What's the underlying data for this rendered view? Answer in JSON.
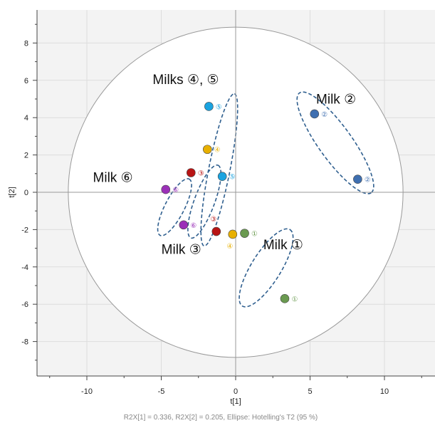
{
  "chart_data": {
    "type": "scatter",
    "title": "",
    "xlabel": "t[1]",
    "ylabel": "t[2]",
    "xlim": [
      -13,
      13
    ],
    "ylim": [
      -10,
      10
    ],
    "xticks": [
      -10,
      -5,
      0,
      5,
      10
    ],
    "yticks": [
      -8,
      -6,
      -4,
      -2,
      0,
      2,
      4,
      6,
      8
    ],
    "xtick_labels": [
      "-10",
      "-5",
      "0",
      "5",
      "10"
    ],
    "ytick_labels": [
      "-8",
      "-6",
      "-4",
      "-2",
      "0",
      "2",
      "4",
      "6",
      "8"
    ],
    "grid": true,
    "plot_background": "#f3f3f3",
    "footer": "R2X[1] = 0.336, R2X[2] = 0.205, Ellipse: Hotelling's T2 (95 %)",
    "hotelling_ellipse": {
      "center": [
        0,
        0
      ],
      "rx": 11.25,
      "ry": 8.85,
      "color": "#999999"
    },
    "points": [
      {
        "x": 3.3,
        "y": -5.7,
        "label": "①",
        "color": "#6a9a50"
      },
      {
        "x": 0.6,
        "y": -2.2,
        "label": "①",
        "color": "#6a9a50"
      },
      {
        "x": 5.3,
        "y": 4.2,
        "label": "②",
        "color": "#3f6fb0"
      },
      {
        "x": 8.2,
        "y": 0.7,
        "label": "②",
        "color": "#3f6fb0"
      },
      {
        "x": -3.0,
        "y": 1.05,
        "label": "③",
        "color": "#b81414"
      },
      {
        "x": -1.3,
        "y": -2.1,
        "label": "③",
        "color": "#b81414"
      },
      {
        "x": -1.9,
        "y": 2.3,
        "label": "④",
        "color": "#e8b000"
      },
      {
        "x": -0.2,
        "y": -2.25,
        "label": "④",
        "color": "#e8b000"
      },
      {
        "x": -1.8,
        "y": 4.6,
        "label": "⑤",
        "color": "#1aa3e0"
      },
      {
        "x": -0.9,
        "y": 0.85,
        "label": "⑤",
        "color": "#1aa3e0"
      },
      {
        "x": -4.7,
        "y": 0.15,
        "label": "⑥",
        "color": "#9b30b8"
      },
      {
        "x": -3.5,
        "y": -1.75,
        "label": "⑥",
        "color": "#9b30b8"
      }
    ],
    "group_ellipses": [
      {
        "cx": 2.05,
        "cy": -4.05,
        "rx": 2.6,
        "ry": 0.9,
        "angle_deg": 52,
        "color": "#2f5f8f"
      },
      {
        "cx": 6.7,
        "cy": 2.65,
        "rx": 3.6,
        "ry": 1.0,
        "angle_deg": -48,
        "color": "#2f5f8f"
      },
      {
        "cx": -2.1,
        "cy": -0.5,
        "rx": 2.15,
        "ry": 0.65,
        "angle_deg": 65,
        "color": "#2f5f8f"
      },
      {
        "cx": -1.1,
        "cy": 1.2,
        "rx": 4.2,
        "ry": 0.7,
        "angle_deg": 76,
        "color": "#2f5f8f"
      },
      {
        "cx": -4.1,
        "cy": -0.8,
        "rx": 1.8,
        "ry": 0.6,
        "angle_deg": 57,
        "color": "#2f5f8f"
      }
    ],
    "annotations": [
      {
        "text": "Milk ①",
        "x": 3.2,
        "y": -3.05
      },
      {
        "text": "Milk ②",
        "x": 6.75,
        "y": 4.75
      },
      {
        "text": "Milk ③",
        "x": -3.65,
        "y": -3.3
      },
      {
        "text": "Milks ④, ⑤",
        "x": -3.35,
        "y": 5.8
      },
      {
        "text": "Milk ⑥",
        "x": -8.25,
        "y": 0.55
      }
    ]
  }
}
